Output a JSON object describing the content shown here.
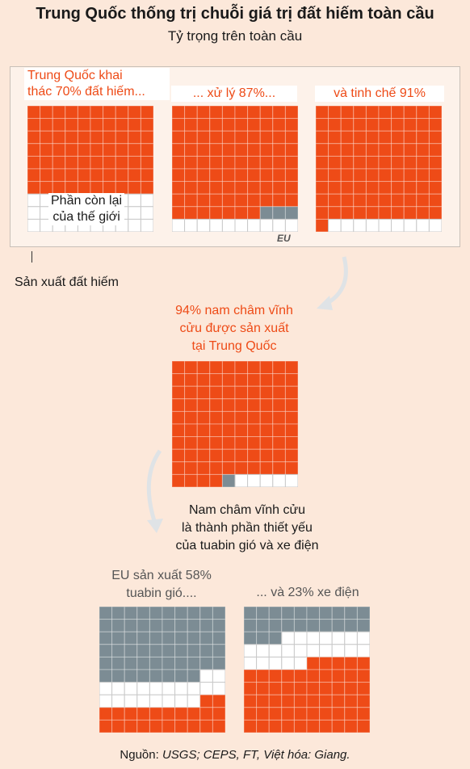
{
  "header": {
    "title": "Trung Quốc thống trị chuỗi giá trị đất hiếm toàn cầu",
    "subtitle": "Tỷ trọng trên toàn cầu"
  },
  "labels": {
    "mining_line1": "Trung Quốc khai",
    "mining_line2": "thác 70% đất hiếm...",
    "processing": "... xử lý 87%...",
    "refining": "và tinh chế 91%",
    "rest_line1": "Phần còn lại",
    "rest_line2": "của thế giới",
    "eu": "EU",
    "production": "Sản xuất đất hiếm",
    "magnets_line1": "94% nam châm vĩnh",
    "magnets_line2": "cửu được sản xuất",
    "magnets_line3": "tại Trung Quốc",
    "component_line1": "Nam châm vĩnh cửu",
    "component_line2": "là thành phần thiết yếu",
    "component_line3": "của tuabin gió và xe điện",
    "turbines_line1": "EU sản xuất 58%",
    "turbines_line2": "tuabin gió....",
    "ev": "... và 23% xe điện",
    "source_prefix": "Nguồn: ",
    "source_italic": "USGS; CEPS, FT, Việt hóa: Giang."
  },
  "colors": {
    "china": "#ee4b17",
    "eu": "#7c8c94",
    "other": "#ffffff",
    "background": "#fce8da"
  },
  "chart_data": [
    {
      "type": "waffle",
      "name": "Khai thác",
      "series": [
        {
          "name": "Trung Quốc",
          "percent": 70
        },
        {
          "name": "Phần còn lại của thế giới",
          "percent": 30
        }
      ]
    },
    {
      "type": "waffle",
      "name": "Xử lý",
      "series": [
        {
          "name": "Trung Quốc",
          "percent": 87
        },
        {
          "name": "EU",
          "percent": 3
        },
        {
          "name": "Phần còn lại của thế giới",
          "percent": 10
        }
      ]
    },
    {
      "type": "waffle",
      "name": "Tinh chế",
      "series": [
        {
          "name": "Trung Quốc",
          "percent": 91
        },
        {
          "name": "Phần còn lại của thế giới",
          "percent": 9
        }
      ]
    },
    {
      "type": "waffle",
      "name": "Nam châm vĩnh cửu",
      "series": [
        {
          "name": "Trung Quốc",
          "percent": 94
        },
        {
          "name": "EU",
          "percent": 1
        },
        {
          "name": "Phần còn lại của thế giới",
          "percent": 5
        }
      ]
    },
    {
      "type": "waffle",
      "name": "Tuabin gió",
      "series": [
        {
          "name": "EU",
          "percent": 58
        },
        {
          "name": "Phần còn lại của thế giới",
          "percent": 20
        },
        {
          "name": "Trung Quốc",
          "percent": 22
        }
      ]
    },
    {
      "type": "waffle",
      "name": "Xe điện",
      "series": [
        {
          "name": "EU",
          "percent": 23
        },
        {
          "name": "Phần còn lại của thế giới",
          "percent": 22
        },
        {
          "name": "Trung Quốc",
          "percent": 55
        }
      ]
    }
  ]
}
